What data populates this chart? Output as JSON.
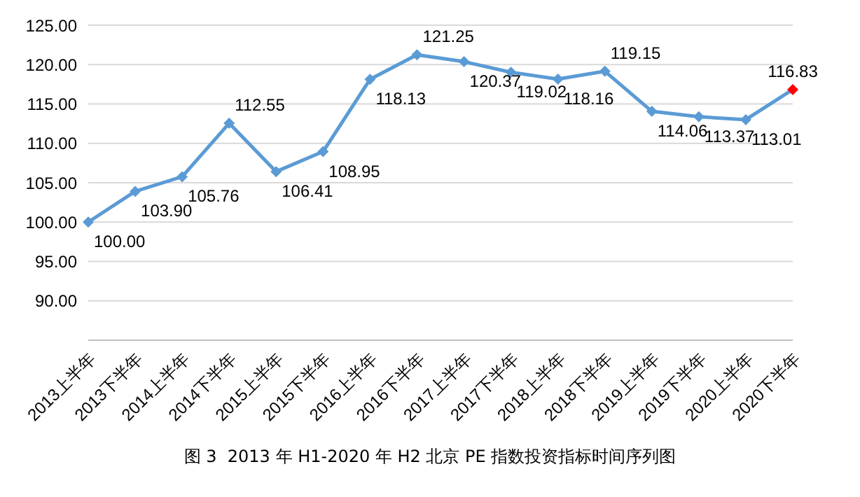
{
  "chart_data": {
    "type": "line",
    "title": "图 3  2013 年 H1-2020 年 H2 北京 PE 指数投资指标时间序列图",
    "categories": [
      "2013上半年",
      "2013下半年",
      "2014上半年",
      "2014下半年",
      "2015上半年",
      "2015下半年",
      "2016上半年",
      "2016下半年",
      "2017上半年",
      "2017下半年",
      "2018上半年",
      "2018下半年",
      "2019上半年",
      "2019下半年",
      "2020上半年",
      "2020下半年"
    ],
    "series": [
      {
        "color": "#5b9bd5",
        "colors": [
          "#5b9bd5",
          "#5b9bd5",
          "#5b9bd5",
          "#5b9bd5",
          "#5b9bd5",
          "#5b9bd5",
          "#5b9bd5",
          "#5b9bd5",
          "#5b9bd5",
          "#5b9bd5",
          "#5b9bd5",
          "#5b9bd5",
          "#5b9bd5",
          "#5b9bd5",
          "#5b9bd5",
          "#ff0000"
        ],
        "values": [
          100.0,
          103.9,
          105.76,
          112.55,
          106.41,
          108.95,
          118.13,
          121.25,
          120.37,
          119.02,
          118.16,
          119.15,
          114.06,
          113.37,
          113.01,
          116.83
        ],
        "value_labels": [
          "100.00",
          "103.90",
          "105.76",
          "112.55",
          "106.41",
          "108.95",
          "118.13",
          "121.25",
          "120.37",
          "119.02",
          "118.16",
          "119.15",
          "114.06",
          "113.37",
          "113.01",
          "116.83"
        ]
      }
    ],
    "ylim": [
      85,
      125
    ],
    "yticks": [
      {
        "value": 90,
        "label": "90.00"
      },
      {
        "value": 95,
        "label": "95.00"
      },
      {
        "value": 100,
        "label": "100.00"
      },
      {
        "value": 105,
        "label": "105.00"
      },
      {
        "value": 110,
        "label": "110.00"
      },
      {
        "value": 115,
        "label": "115.00"
      },
      {
        "value": 120,
        "label": "120.00"
      },
      {
        "value": 125,
        "label": "125.00"
      }
    ],
    "grid": "y",
    "marker": "diamond",
    "line_style": "solid",
    "legend": false
  }
}
